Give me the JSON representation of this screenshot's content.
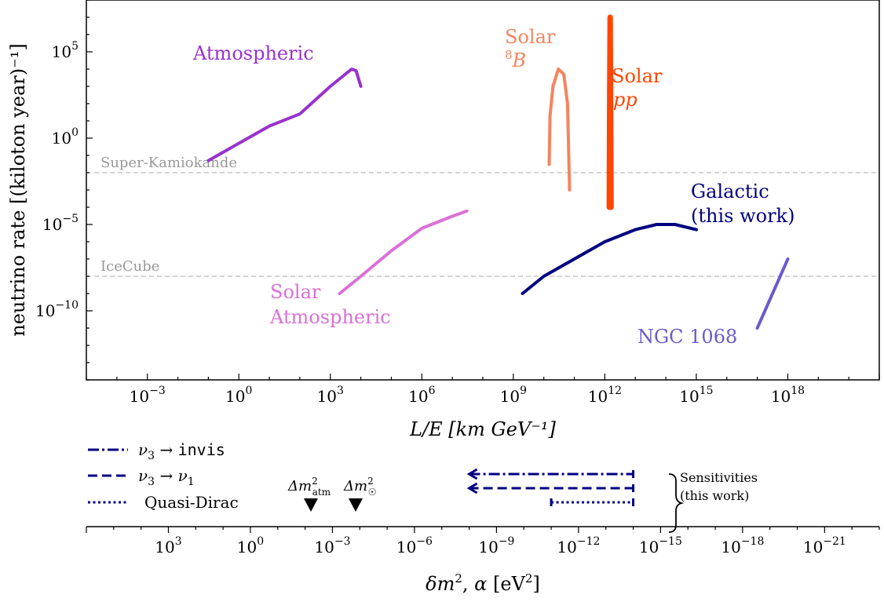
{
  "chart_data": [
    {
      "type": "line",
      "ylabel": "neutrino rate [(kiloton year)⁻¹]",
      "xlabel": "L/E [km GeV⁻¹]",
      "x_scale": "log",
      "y_scale": "log",
      "xlim": [
        1e-05,
        1e+21
      ],
      "ylim": [
        1e-14,
        100000000.0
      ],
      "x_ticks": [
        0.001,
        1.0,
        1000.0,
        1000000.0,
        1000000000.0,
        1000000000000.0,
        1000000000000000.0,
        1e+18
      ],
      "x_tick_labels": [
        {
          "base": "10",
          "exp": "−3"
        },
        {
          "base": "10",
          "exp": "0"
        },
        {
          "base": "10",
          "exp": "3"
        },
        {
          "base": "10",
          "exp": "6"
        },
        {
          "base": "10",
          "exp": "9"
        },
        {
          "base": "10",
          "exp": "12"
        },
        {
          "base": "10",
          "exp": "15"
        },
        {
          "base": "10",
          "exp": "18"
        }
      ],
      "y_ticks": [
        100000.0,
        1.0,
        1e-05,
        1e-10
      ],
      "y_tick_labels": [
        {
          "base": "10",
          "exp": "5"
        },
        {
          "base": "10",
          "exp": "0"
        },
        {
          "base": "10",
          "exp": "−5"
        },
        {
          "base": "10",
          "exp": "−10"
        }
      ],
      "reference_lines": [
        {
          "name": "Super-Kamiokande",
          "y": 0.01,
          "color": "#bbbbbb"
        },
        {
          "name": "IceCube",
          "y": 1e-08,
          "color": "#bbbbbb"
        }
      ],
      "series": [
        {
          "name": "Atmospheric",
          "color": "#9932cc",
          "x": [
            0.1,
            1,
            10,
            100,
            1000,
            5000,
            7000,
            10000
          ],
          "y": [
            0.05,
            0.5,
            5,
            25,
            1000,
            10000,
            8000,
            1000
          ]
        },
        {
          "name": "Solar ⁸B",
          "color": "#f4845f",
          "x": [
            15000000000.0,
            16000000000.0,
            20000000000.0,
            30000000000.0,
            45000000000.0,
            60000000000.0,
            70000000000.0
          ],
          "y": [
            0.03,
            20,
            1000,
            10000,
            5000,
            100,
            0.001
          ]
        },
        {
          "name": "Solar pp",
          "color": "#ff4500",
          "x": [
            1400000000000.0,
            1450000000000.0,
            1500000000000.0,
            1600000000000.0
          ],
          "y": [
            0.0001,
            1000.0,
            10000000.0,
            0.0001
          ]
        },
        {
          "name": "Solar Atmospheric",
          "color": "#da70d6",
          "x": [
            2000,
            10000.0,
            100000.0,
            1000000.0,
            10000000.0,
            30000000.0
          ],
          "y": [
            1e-09,
            1e-08,
            3e-07,
            6e-06,
            3e-05,
            6e-05
          ]
        },
        {
          "name": "Galactic (this work)",
          "color": "#000080",
          "x": [
            2000000000.0,
            10000000000.0,
            100000000000.0,
            1000000000000.0,
            10000000000000.0,
            50000000000000.0,
            200000000000000.0,
            1000000000000000.0
          ],
          "y": [
            1e-09,
            1e-08,
            1e-07,
            1e-06,
            5e-06,
            1e-05,
            1e-05,
            5e-06
          ]
        },
        {
          "name": "NGC 1068",
          "color": "#6a5acd",
          "x": [
            1e+17,
            1e+18
          ],
          "y": [
            1e-11,
            1e-07
          ]
        }
      ],
      "annotations": [
        {
          "text": "Atmospheric",
          "color": "#9932cc"
        },
        {
          "text": "Solar",
          "color": "#f4845f"
        },
        {
          "text": "8",
          "color": "#f4845f"
        },
        {
          "text": "B",
          "color": "#f4845f"
        },
        {
          "text": "Solar",
          "color": "#ff4500"
        },
        {
          "text": "pp",
          "color": "#ff4500"
        },
        {
          "text": "Galactic",
          "color": "#000080"
        },
        {
          "text": "(this work)",
          "color": "#000080"
        },
        {
          "text": "Solar",
          "color": "#da70d6"
        },
        {
          "text": "Atmospheric",
          "color": "#da70d6"
        },
        {
          "text": "NGC 1068",
          "color": "#6a5acd"
        }
      ]
    },
    {
      "type": "line",
      "xlabel": "δm², α [eV²]",
      "x_scale": "log",
      "x_inverted": true,
      "xlim": [
        1000000.0,
        1e-23
      ],
      "x_ticks": [
        1000.0,
        1.0,
        0.001,
        1e-06,
        1e-09,
        1e-12,
        1e-15,
        1e-18,
        1e-21
      ],
      "x_tick_labels": [
        {
          "base": "10",
          "exp": "3"
        },
        {
          "base": "10",
          "exp": "0"
        },
        {
          "base": "10",
          "exp": "−3"
        },
        {
          "base": "10",
          "exp": "−6"
        },
        {
          "base": "10",
          "exp": "−9"
        },
        {
          "base": "10",
          "exp": "−12"
        },
        {
          "base": "10",
          "exp": "−15"
        },
        {
          "base": "10",
          "exp": "−18"
        },
        {
          "base": "10",
          "exp": "−21"
        }
      ],
      "legend": [
        {
          "label_sym": "ν",
          "sub": "3",
          "arrow": " → ",
          "target": "invis",
          "target_style": "mono",
          "dash": "dashdot",
          "color": "#000080"
        },
        {
          "label_sym": "ν",
          "sub": "3",
          "arrow": " → ",
          "target": "ν",
          "target_sub": "1",
          "dash": "dashed",
          "color": "#000080"
        },
        {
          "label": "Quasi-Dirac",
          "dash": "dotted",
          "color": "#000080"
        }
      ],
      "sensitivities": [
        {
          "name": "ν3 → invis",
          "dash": "dashdot",
          "from": 1e-14,
          "to": 1e-08
        },
        {
          "name": "ν3 → ν1",
          "dash": "dashed",
          "from": 1e-14,
          "to": 1e-08
        },
        {
          "name": "Quasi-Dirac",
          "dash": "dotted",
          "from": 1e-14,
          "to": 1e-11
        }
      ],
      "markers": [
        {
          "sym": "Δm",
          "sub": "atm",
          "sup": "2",
          "value": 0.0025
        },
        {
          "sym": "Δm",
          "sub": "☉",
          "sup": "2",
          "value": 7.5e-05
        }
      ],
      "brace_label": [
        "Sensitivities",
        "(this work)"
      ]
    }
  ]
}
